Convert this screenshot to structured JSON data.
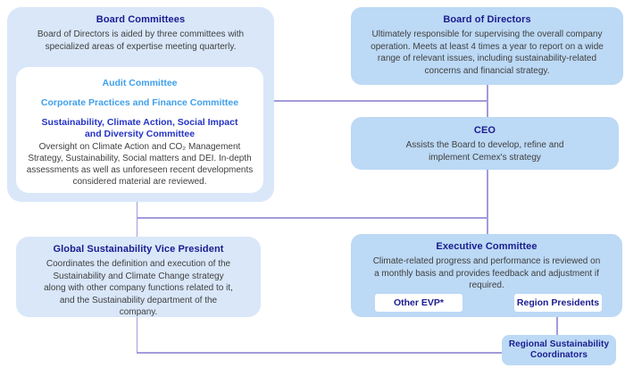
{
  "colors": {
    "box_light_blue": "#d9e7f9",
    "box_medium_blue": "#bcd9f5",
    "card_white": "#ffffff",
    "heading_navy": "#1a1c8f",
    "heading_sky_blue": "#3fa0ea",
    "heading_bright_blue": "#2433c4",
    "body_text": "#3f3f3f",
    "connector_line": "#a29bdb"
  },
  "board_committees": {
    "title": "Board Committees",
    "body": "Board of Directors is aided by three committees with specialized areas of expertise meeting quarterly.",
    "card": {
      "audit_title": "Audit Committee",
      "corporate_title": "Corporate Practices and Finance Committee",
      "sustainability_title": "Sustainability, Climate Action, Social Impact and Diversity Committee",
      "sustainability_body": "Oversight on Climate Action and CO₂ Management Strategy, Sustainability, Social matters and DEI. In-depth assessments as well as unforeseen recent developments considered material are reviewed."
    }
  },
  "board_of_directors": {
    "title": "Board of Directors",
    "body": "Ultimately responsible for supervising the overall company operation. Meets at least 4 times a year to report on a wide range of relevant issues, including sustainability-related concerns and financial strategy."
  },
  "ceo": {
    "title": "CEO",
    "body": "Assists the Board to develop, refine and implement Cemex's strategy"
  },
  "global_sustainability_vp": {
    "title": "Global Sustainability Vice President",
    "body": "Coordinates the definition and execution of the Sustainability and Climate Change strategy along with other company functions related to it, and the Sustainability department of the company."
  },
  "executive_committee": {
    "title": "Executive Committee",
    "body": "Climate-related progress and performance is reviewed on a monthly basis and provides feedback and adjustment if required.",
    "chips": [
      {
        "label": "Other EVP*"
      },
      {
        "label": "Region Presidents"
      }
    ]
  },
  "regional_sustainability_coordinators": {
    "title": "Regional Sustainability Coordinators"
  }
}
